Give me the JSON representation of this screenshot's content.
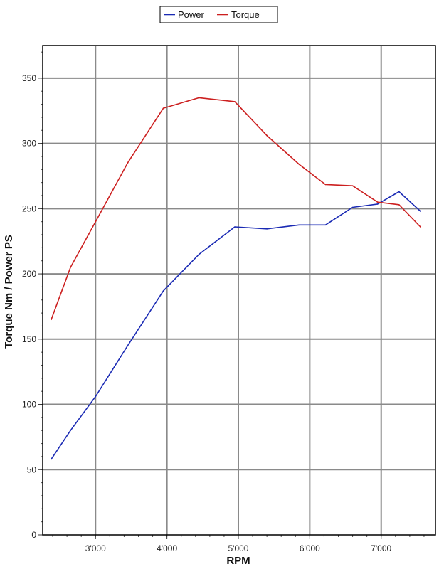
{
  "chart_data": {
    "type": "line",
    "xlabel": "RPM",
    "ylabel": "Torque Nm / Power PS",
    "xlim": [
      2260,
      7760
    ],
    "ylim": [
      0,
      375
    ],
    "xticks": [
      3000,
      4000,
      5000,
      6000,
      7000
    ],
    "xtick_labels": [
      "3'000",
      "4'000",
      "5'000",
      "6'000",
      "7'000"
    ],
    "yticks": [
      0,
      50,
      100,
      150,
      200,
      250,
      300,
      350
    ],
    "ytick_labels": [
      "0",
      "50",
      "100",
      "150",
      "200",
      "250",
      "300",
      "350"
    ],
    "grid": true,
    "legend_position": "top-center",
    "series": [
      {
        "name": "Power",
        "color": "#1a2ab4",
        "x": [
          2380,
          2650,
          3000,
          3450,
          3950,
          4450,
          4950,
          5400,
          5850,
          6220,
          6600,
          6950,
          7250,
          7550
        ],
        "y": [
          58,
          80,
          106,
          145,
          187,
          215,
          236,
          234.5,
          237.5,
          237.5,
          251,
          253.5,
          263,
          248
        ]
      },
      {
        "name": "Torque",
        "color": "#cc1f1f",
        "x": [
          2380,
          2650,
          3000,
          3450,
          3950,
          4450,
          4950,
          5400,
          5850,
          6220,
          6600,
          6950,
          7250,
          7550
        ],
        "y": [
          165,
          205,
          240,
          285,
          327,
          335,
          332,
          306,
          284,
          268.5,
          267.5,
          255,
          253,
          236
        ]
      }
    ]
  }
}
